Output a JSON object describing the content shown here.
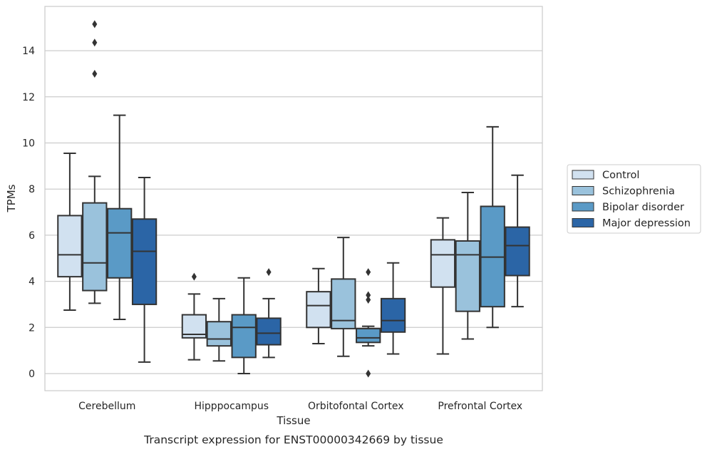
{
  "chart_data": {
    "type": "box",
    "title": "",
    "caption": "Transcript expression for ENST00000342669 by tissue",
    "xlabel": "Tissue",
    "ylabel": "TPMs",
    "ylim": [
      -0.75,
      15.9
    ],
    "yticks": [
      0,
      2,
      4,
      6,
      8,
      10,
      12,
      14
    ],
    "grid": true,
    "legend_position": "right",
    "categories": [
      "Cerebellum",
      "Hipppocampus",
      "Orbitofontal Cortex",
      "Prefrontal Cortex"
    ],
    "series": [
      {
        "name": "Control",
        "color": "#d1e1f0",
        "boxes": [
          {
            "whislo": 2.75,
            "q1": 4.2,
            "med": 5.15,
            "q3": 6.85,
            "whishi": 9.55,
            "fliers": []
          },
          {
            "whislo": 0.6,
            "q1": 1.55,
            "med": 1.7,
            "q3": 2.55,
            "whishi": 3.45,
            "fliers": [
              4.2
            ]
          },
          {
            "whislo": 1.3,
            "q1": 2.0,
            "med": 2.95,
            "q3": 3.55,
            "whishi": 4.55,
            "fliers": []
          },
          {
            "whislo": 0.85,
            "q1": 3.75,
            "med": 5.15,
            "q3": 5.8,
            "whishi": 6.75,
            "fliers": []
          }
        ]
      },
      {
        "name": "Schizophrenia",
        "color": "#9ac2dc",
        "boxes": [
          {
            "whislo": 3.05,
            "q1": 3.6,
            "med": 4.8,
            "q3": 7.4,
            "whishi": 8.55,
            "fliers": [
              13.0,
              14.35,
              15.15
            ]
          },
          {
            "whislo": 0.55,
            "q1": 1.2,
            "med": 1.5,
            "q3": 2.25,
            "whishi": 3.25,
            "fliers": []
          },
          {
            "whislo": 0.75,
            "q1": 1.95,
            "med": 2.3,
            "q3": 4.1,
            "whishi": 5.9,
            "fliers": []
          },
          {
            "whislo": 1.5,
            "q1": 2.7,
            "med": 5.15,
            "q3": 5.75,
            "whishi": 7.85,
            "fliers": []
          }
        ]
      },
      {
        "name": "Bipolar disorder",
        "color": "#5a9ac6",
        "boxes": [
          {
            "whislo": 2.35,
            "q1": 4.15,
            "med": 6.1,
            "q3": 7.15,
            "whishi": 11.2,
            "fliers": []
          },
          {
            "whislo": 0.0,
            "q1": 0.7,
            "med": 2.0,
            "q3": 2.55,
            "whishi": 4.15,
            "fliers": []
          },
          {
            "whislo": 1.2,
            "q1": 1.35,
            "med": 1.55,
            "q3": 1.95,
            "whishi": 2.05,
            "fliers": [
              0.0,
              3.2,
              3.4,
              4.4
            ]
          },
          {
            "whislo": 2.0,
            "q1": 2.9,
            "med": 5.05,
            "q3": 7.25,
            "whishi": 10.7,
            "fliers": []
          }
        ]
      },
      {
        "name": "Major depression",
        "color": "#2b65a6",
        "boxes": [
          {
            "whislo": 0.5,
            "q1": 3.0,
            "med": 5.3,
            "q3": 6.7,
            "whishi": 8.5,
            "fliers": []
          },
          {
            "whislo": 0.7,
            "q1": 1.25,
            "med": 1.75,
            "q3": 2.4,
            "whishi": 3.25,
            "fliers": [
              4.4
            ]
          },
          {
            "whislo": 0.85,
            "q1": 1.8,
            "med": 2.3,
            "q3": 3.25,
            "whishi": 4.8,
            "fliers": []
          },
          {
            "whislo": 2.9,
            "q1": 4.25,
            "med": 5.55,
            "q3": 6.35,
            "whishi": 8.6,
            "fliers": []
          }
        ]
      }
    ]
  }
}
